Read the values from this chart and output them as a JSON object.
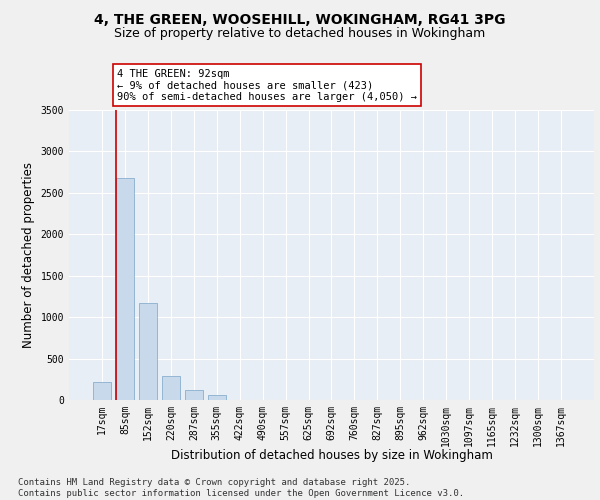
{
  "title_line1": "4, THE GREEN, WOOSEHILL, WOKINGHAM, RG41 3PG",
  "title_line2": "Size of property relative to detached houses in Wokingham",
  "xlabel": "Distribution of detached houses by size in Wokingham",
  "ylabel": "Number of detached properties",
  "bar_color": "#c9d9ec",
  "bar_edge_color": "#7aa4c8",
  "categories": [
    "17sqm",
    "85sqm",
    "152sqm",
    "220sqm",
    "287sqm",
    "355sqm",
    "422sqm",
    "490sqm",
    "557sqm",
    "625sqm",
    "692sqm",
    "760sqm",
    "827sqm",
    "895sqm",
    "962sqm",
    "1030sqm",
    "1097sqm",
    "1165sqm",
    "1232sqm",
    "1300sqm",
    "1367sqm"
  ],
  "values": [
    215,
    2680,
    1170,
    290,
    115,
    55,
    0,
    0,
    0,
    0,
    0,
    0,
    0,
    0,
    0,
    0,
    0,
    0,
    0,
    0,
    0
  ],
  "ylim": [
    0,
    3500
  ],
  "yticks": [
    0,
    500,
    1000,
    1500,
    2000,
    2500,
    3000,
    3500
  ],
  "vline_color": "#cc0000",
  "annotation_text": "4 THE GREEN: 92sqm\n← 9% of detached houses are smaller (423)\n90% of semi-detached houses are larger (4,050) →",
  "annotation_box_color": "#ffffff",
  "annotation_box_edge": "#cc0000",
  "background_color": "#e8eef5",
  "fig_background": "#f0f0f0",
  "grid_color": "#ffffff",
  "footer_text": "Contains HM Land Registry data © Crown copyright and database right 2025.\nContains public sector information licensed under the Open Government Licence v3.0.",
  "title_fontsize": 10,
  "subtitle_fontsize": 9,
  "label_fontsize": 8.5,
  "tick_fontsize": 7,
  "footer_fontsize": 6.5,
  "annot_fontsize": 7.5
}
